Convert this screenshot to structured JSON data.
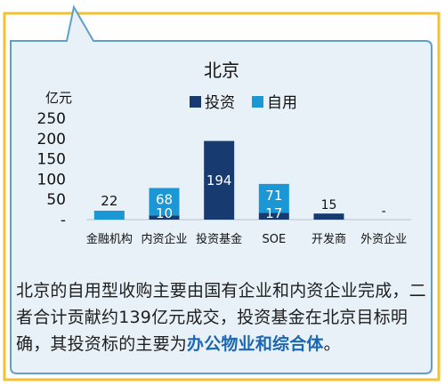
{
  "colors": {
    "frame_border": "#f2c233",
    "panel_bg": "#e8f1f7",
    "panel_border": "#5f9fc9",
    "invest": "#173b71",
    "self_use": "#1a97d4",
    "caption_highlight": "#1c67b1"
  },
  "chart_data": {
    "type": "bar",
    "stacked": true,
    "title": "北京",
    "unit_label": "亿元",
    "categories": [
      "金融机构",
      "内资企业",
      "投资基金",
      "SOE",
      "开发商",
      "外资企业"
    ],
    "series": [
      {
        "name": "投资",
        "values": [
          0,
          10,
          194,
          17,
          15,
          0
        ]
      },
      {
        "name": "自用",
        "values": [
          22,
          68,
          0,
          71,
          0,
          0
        ]
      }
    ],
    "data_labels": [
      {
        "category": "金融机构",
        "series": "自用",
        "text": "22"
      },
      {
        "category": "内资企业",
        "series": "自用",
        "text": "68"
      },
      {
        "category": "内资企业",
        "series": "投资",
        "text": "10"
      },
      {
        "category": "投资基金",
        "series": "投资",
        "text": "194"
      },
      {
        "category": "SOE",
        "series": "自用",
        "text": "71"
      },
      {
        "category": "SOE",
        "series": "投资",
        "text": "17"
      },
      {
        "category": "开发商",
        "series": "投资",
        "text": "15"
      },
      {
        "category": "外资企业",
        "series": "投资",
        "text": "-"
      }
    ],
    "y_ticks": [
      "250",
      "200",
      "150",
      "100",
      "50",
      "-"
    ],
    "ylim": [
      0,
      250
    ],
    "legend_position": "top-right",
    "grid": false
  },
  "caption": {
    "part1": "北京的自用型收购主要由国有企业和内资企业完成，二者合计贡献约139亿元成交，投资基金在北京目标明确，其投资标的主要为",
    "highlight": "办公物业和综合体",
    "part2": "。"
  }
}
